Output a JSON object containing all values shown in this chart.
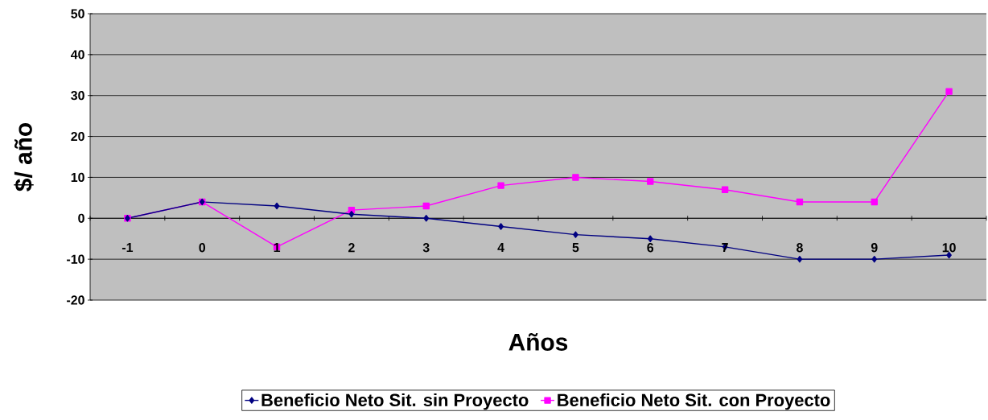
{
  "chart_data": {
    "type": "line",
    "xlabel": "Años",
    "ylabel": "$/ año",
    "categories": [
      "-1",
      "0",
      "1",
      "2",
      "3",
      "4",
      "5",
      "6",
      "7",
      "8",
      "9",
      "10"
    ],
    "series": [
      {
        "name": "Beneficio Neto Sit. sin Proyecto",
        "color": "#000080",
        "marker": "diamond",
        "values": [
          0,
          4,
          3,
          1,
          0,
          -2,
          -4,
          -5,
          -7,
          -10,
          -10,
          -9
        ]
      },
      {
        "name": "Beneficio Neto Sit. con Proyecto",
        "color": "#ff00ff",
        "marker": "square",
        "values": [
          0,
          4,
          -7,
          2,
          3,
          8,
          10,
          9,
          7,
          4,
          4,
          31
        ]
      }
    ],
    "ylim": [
      -20,
      50
    ],
    "yticks": [
      -20,
      -10,
      0,
      10,
      20,
      30,
      40,
      50
    ],
    "grid": "y",
    "legend": "bottom",
    "line_style": "solid"
  }
}
